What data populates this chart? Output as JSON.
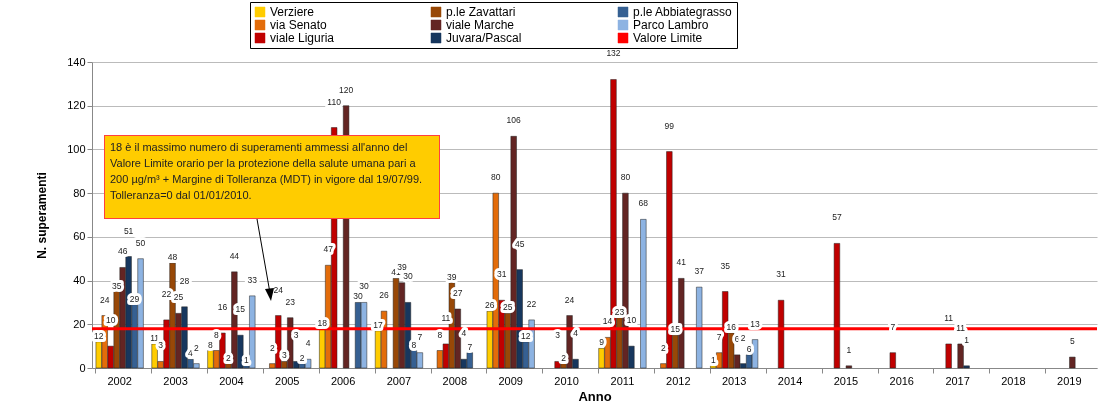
{
  "chart_data": {
    "type": "bar",
    "xlabel": "Anno",
    "ylabel": "N. superamenti",
    "categories": [
      "2002",
      "2003",
      "2004",
      "2005",
      "2006",
      "2007",
      "2008",
      "2009",
      "2010",
      "2011",
      "2012",
      "2013",
      "2014",
      "2015",
      "2016",
      "2017",
      "2018",
      "2019"
    ],
    "series": [
      {
        "name": "Verziere",
        "color": "#ffcc00",
        "values": [
          12,
          11,
          8,
          null,
          18,
          17,
          null,
          26,
          null,
          9,
          null,
          1,
          null,
          null,
          null,
          null,
          null,
          null
        ]
      },
      {
        "name": "via Senato",
        "color": "#e36c0a",
        "values": [
          24,
          3,
          8,
          2,
          47,
          26,
          8,
          80,
          null,
          14,
          2,
          7,
          null,
          null,
          null,
          null,
          null,
          null
        ]
      },
      {
        "name": "viale Liguria",
        "color": "#c00000",
        "values": [
          10,
          22,
          16,
          24,
          110,
          null,
          11,
          31,
          3,
          132,
          99,
          35,
          31,
          57,
          7,
          11,
          null,
          null
        ]
      },
      {
        "name": "p.le Zavattari",
        "color": "#984807",
        "values": [
          35,
          48,
          2,
          3,
          null,
          41,
          39,
          25,
          2,
          23,
          15,
          16,
          null,
          null,
          null,
          null,
          null,
          null
        ]
      },
      {
        "name": "viale Marche",
        "color": "#632523",
        "values": [
          46,
          25,
          44,
          23,
          120,
          39,
          27,
          106,
          24,
          80,
          41,
          6,
          null,
          1,
          null,
          11,
          null,
          5
        ]
      },
      {
        "name": "Juvara/Pascal",
        "color": "#17375e",
        "values": [
          51,
          28,
          15,
          3,
          null,
          30,
          4,
          45,
          4,
          10,
          null,
          2,
          null,
          null,
          null,
          1,
          null,
          null
        ]
      },
      {
        "name": "p.le Abbiategrasso",
        "color": "#366092",
        "values": [
          29,
          4,
          1,
          2,
          30,
          8,
          7,
          12,
          null,
          null,
          null,
          6,
          null,
          null,
          null,
          null,
          null,
          null
        ]
      },
      {
        "name": "Parco Lambro",
        "color": "#8db3e2",
        "values": [
          50,
          2,
          33,
          4,
          30,
          7,
          null,
          22,
          null,
          68,
          37,
          13,
          null,
          null,
          null,
          null,
          null,
          null
        ]
      }
    ],
    "ylim": [
      0,
      140
    ],
    "yticks": [
      0,
      20,
      40,
      60,
      80,
      100,
      120,
      140
    ],
    "grid": "y",
    "legend": "top",
    "data_labels": true,
    "ref_lines": [
      {
        "axis": "y",
        "value": 18,
        "label": "Valore Limite",
        "color": "#ff0000"
      }
    ],
    "annotations": [
      "18 è il massimo numero di superamenti ammessi all'anno del Valore Limite orario per la protezione della salute umana pari a 200 µg/m³ + Margine di Tolleranza (MDT) in vigore dal 19/07/99. Tolleranza=0 dal 01/01/2010."
    ]
  }
}
